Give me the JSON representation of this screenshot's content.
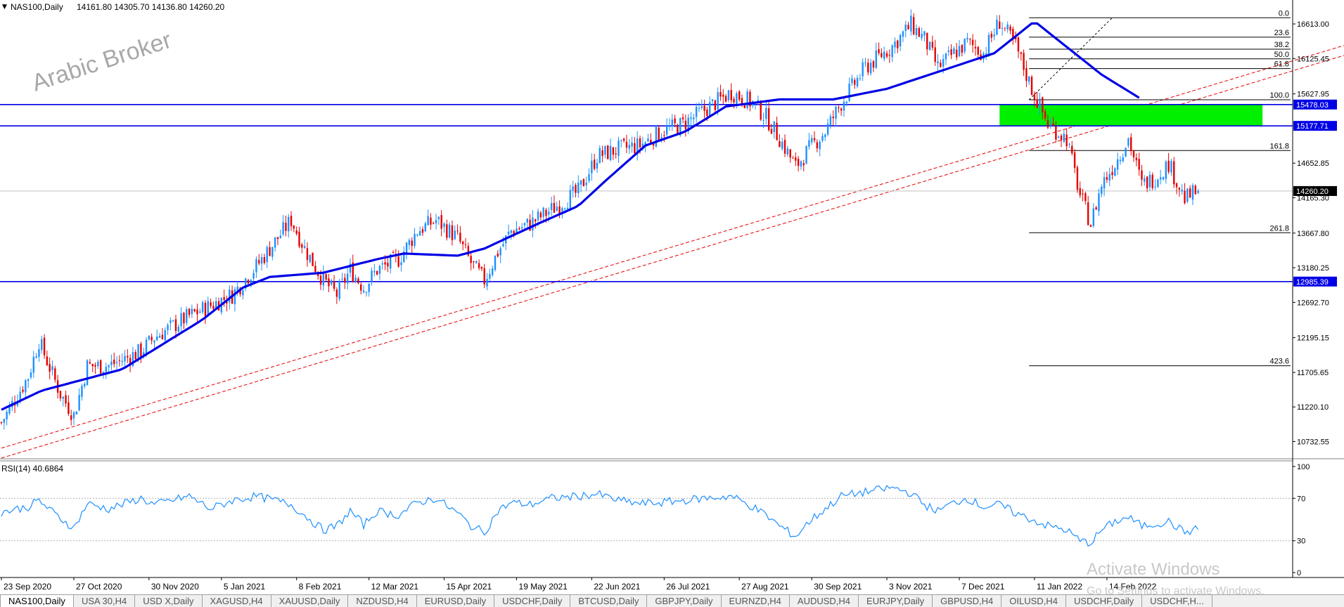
{
  "header": {
    "arrow": "▼",
    "title": "NAS100,Daily",
    "ohlc": "14161.80 14305.70 14136.80 14260.20"
  },
  "watermark_text": "Arabic Broker",
  "indicator": {
    "label": "RSI(14) 40.6864",
    "levels": [
      "100",
      "70",
      "30",
      "0"
    ]
  },
  "windows_notice": {
    "line1": "Activate Windows",
    "line2": "Go to Settings to activate Windows."
  },
  "tabs": [
    "NAS100,Daily",
    "USA 30,H4",
    "USD X,Daily",
    "XAGUSD,H4",
    "XAUUSD,Daily",
    "NZDUSD,H4",
    "EURUSD,Daily",
    "USDCHF,Daily",
    "BTCUSD,Daily",
    "GBPJPY,Daily",
    "EURNZD,H4",
    "AUDUSD,H4",
    "EURJPY,Daily",
    "GBPUSD,H4",
    "OILUSD,H4",
    "USDCHF,Daily",
    "USDCHF,H..."
  ],
  "colors": {
    "bull": "#1e90ff",
    "bear": "#e60000",
    "ma": "#0000e6",
    "level_line": "#0000e6",
    "zone": "#00f000",
    "rsi": "#1e90ff",
    "trend": "#e60000"
  },
  "chart_data": {
    "type": "candlestick",
    "symbol": "NAS100",
    "timeframe": "Daily",
    "y_axis": {
      "min": 10500,
      "max": 16950,
      "ticks": [
        16613.0,
        16125.45,
        15627.95,
        14652.85,
        14165.3,
        13667.8,
        13180.25,
        12692.7,
        12195.15,
        11705.65,
        11220.1,
        10732.55
      ]
    },
    "x_labels": [
      "23 Sep 2020",
      "27 Oct 2020",
      "30 Nov 2020",
      "5 Jan 2021",
      "8 Feb 2021",
      "12 Mar 2021",
      "15 Apr 2021",
      "19 May 2021",
      "22 Jun 2021",
      "26 Jul 2021",
      "27 Aug 2021",
      "30 Sep 2021",
      "3 Nov 2021",
      "7 Dec 2021",
      "11 Jan 2022",
      "14 Feb 2022"
    ],
    "price_path": [
      [
        0,
        11000
      ],
      [
        10,
        11650
      ],
      [
        14,
        12150
      ],
      [
        22,
        11400
      ],
      [
        27,
        11100
      ],
      [
        32,
        11800
      ],
      [
        40,
        11800
      ],
      [
        52,
        12000
      ],
      [
        57,
        12200
      ],
      [
        70,
        12500
      ],
      [
        78,
        12650
      ],
      [
        86,
        12800
      ],
      [
        95,
        13200
      ],
      [
        102,
        13550
      ],
      [
        108,
        13850
      ],
      [
        113,
        13450
      ],
      [
        120,
        13000
      ],
      [
        125,
        12800
      ],
      [
        130,
        13150
      ],
      [
        135,
        12900
      ],
      [
        140,
        13150
      ],
      [
        148,
        13300
      ],
      [
        155,
        13700
      ],
      [
        162,
        13850
      ],
      [
        170,
        13600
      ],
      [
        175,
        13250
      ],
      [
        180,
        13000
      ],
      [
        185,
        13400
      ],
      [
        190,
        13700
      ],
      [
        197,
        13800
      ],
      [
        205,
        14000
      ],
      [
        215,
        14250
      ],
      [
        222,
        14750
      ],
      [
        230,
        14850
      ],
      [
        238,
        14900
      ],
      [
        246,
        15100
      ],
      [
        254,
        15200
      ],
      [
        262,
        15400
      ],
      [
        272,
        15650
      ],
      [
        280,
        15500
      ],
      [
        285,
        15300
      ],
      [
        290,
        15000
      ],
      [
        296,
        14600
      ],
      [
        301,
        14850
      ],
      [
        307,
        15100
      ],
      [
        313,
        15500
      ],
      [
        322,
        16000
      ],
      [
        332,
        16300
      ],
      [
        339,
        16600
      ],
      [
        344,
        16400
      ],
      [
        349,
        16000
      ],
      [
        355,
        16200
      ],
      [
        360,
        16350
      ],
      [
        366,
        16200
      ],
      [
        372,
        16650
      ],
      [
        378,
        16300
      ],
      [
        384,
        15700
      ],
      [
        390,
        15200
      ],
      [
        397,
        15000
      ],
      [
        402,
        14200
      ],
      [
        406,
        13800
      ],
      [
        410,
        14350
      ],
      [
        415,
        14650
      ],
      [
        420,
        15000
      ],
      [
        425,
        14350
      ],
      [
        430,
        14450
      ],
      [
        435,
        14650
      ],
      [
        441,
        14150
      ],
      [
        446,
        14260
      ]
    ],
    "ma_path": [
      [
        0,
        11180
      ],
      [
        15,
        11450
      ],
      [
        30,
        11600
      ],
      [
        45,
        11750
      ],
      [
        60,
        12100
      ],
      [
        75,
        12450
      ],
      [
        90,
        12900
      ],
      [
        100,
        13050
      ],
      [
        120,
        13110
      ],
      [
        140,
        13300
      ],
      [
        150,
        13380
      ],
      [
        170,
        13350
      ],
      [
        180,
        13450
      ],
      [
        200,
        13800
      ],
      [
        215,
        14050
      ],
      [
        225,
        14400
      ],
      [
        240,
        14900
      ],
      [
        255,
        15100
      ],
      [
        270,
        15450
      ],
      [
        290,
        15550
      ],
      [
        310,
        15550
      ],
      [
        330,
        15700
      ],
      [
        350,
        15950
      ],
      [
        370,
        16200
      ],
      [
        385,
        16650
      ],
      [
        395,
        16350
      ],
      [
        410,
        15900
      ],
      [
        425,
        15550
      ]
    ],
    "rsi": {
      "period": 14,
      "value": 40.6864,
      "levels": [
        70,
        30
      ],
      "path": [
        [
          0,
          57
        ],
        [
          10,
          62
        ],
        [
          14,
          68
        ],
        [
          20,
          55
        ],
        [
          27,
          42
        ],
        [
          32,
          65
        ],
        [
          40,
          60
        ],
        [
          52,
          70
        ],
        [
          57,
          64
        ],
        [
          70,
          72
        ],
        [
          78,
          60
        ],
        [
          86,
          68
        ],
        [
          95,
          72
        ],
        [
          102,
          68
        ],
        [
          108,
          64
        ],
        [
          113,
          54
        ],
        [
          120,
          40
        ],
        [
          125,
          44
        ],
        [
          130,
          58
        ],
        [
          135,
          45
        ],
        [
          140,
          58
        ],
        [
          148,
          54
        ],
        [
          155,
          66
        ],
        [
          162,
          70
        ],
        [
          170,
          56
        ],
        [
          175,
          44
        ],
        [
          180,
          38
        ],
        [
          185,
          58
        ],
        [
          190,
          66
        ],
        [
          197,
          64
        ],
        [
          205,
          70
        ],
        [
          215,
          72
        ],
        [
          222,
          74
        ],
        [
          230,
          68
        ],
        [
          238,
          65
        ],
        [
          246,
          66
        ],
        [
          254,
          68
        ],
        [
          262,
          70
        ],
        [
          272,
          72
        ],
        [
          280,
          62
        ],
        [
          285,
          54
        ],
        [
          290,
          44
        ],
        [
          296,
          34
        ],
        [
          301,
          48
        ],
        [
          307,
          60
        ],
        [
          313,
          72
        ],
        [
          322,
          76
        ],
        [
          332,
          80
        ],
        [
          339,
          75
        ],
        [
          344,
          64
        ],
        [
          349,
          58
        ],
        [
          355,
          66
        ],
        [
          360,
          70
        ],
        [
          366,
          62
        ],
        [
          372,
          64
        ],
        [
          378,
          56
        ],
        [
          384,
          50
        ],
        [
          390,
          44
        ],
        [
          397,
          40
        ],
        [
          402,
          30
        ],
        [
          406,
          28
        ],
        [
          410,
          40
        ],
        [
          415,
          48
        ],
        [
          420,
          52
        ],
        [
          425,
          44
        ],
        [
          430,
          46
        ],
        [
          435,
          48
        ],
        [
          441,
          38
        ],
        [
          446,
          41
        ]
      ]
    },
    "horizontal_levels": [
      15478.03,
      15177.71,
      12985.39
    ],
    "current_price": 14260.2,
    "fibonacci": {
      "start_index": 383,
      "end_index": 446,
      "levels": [
        {
          "label": "0.0",
          "price": 16700
        },
        {
          "label": "23.6",
          "price": 16427
        },
        {
          "label": "38.2",
          "price": 16258
        },
        {
          "label": "50.0",
          "price": 16121
        },
        {
          "label": "61.8",
          "price": 15984
        },
        {
          "label": "100.0",
          "price": 15545
        },
        {
          "label": "161.8",
          "price": 14830
        },
        {
          "label": "261.8",
          "price": 13673
        },
        {
          "label": "423.6",
          "price": 11800
        }
      ]
    },
    "zone": {
      "start_index": 372,
      "end_index": 470,
      "top": 15478.03,
      "bottom": 15177.71
    },
    "trend_lines": [
      {
        "x1": 0,
        "y1": 10640,
        "x2": 560,
        "y2": 16985
      },
      {
        "x1": 0,
        "y1": 10500,
        "x2": 560,
        "y2": 16845
      }
    ],
    "dashed_line": {
      "x1": 383,
      "y1": 15545,
      "x2": 414,
      "y2": 16700
    }
  }
}
